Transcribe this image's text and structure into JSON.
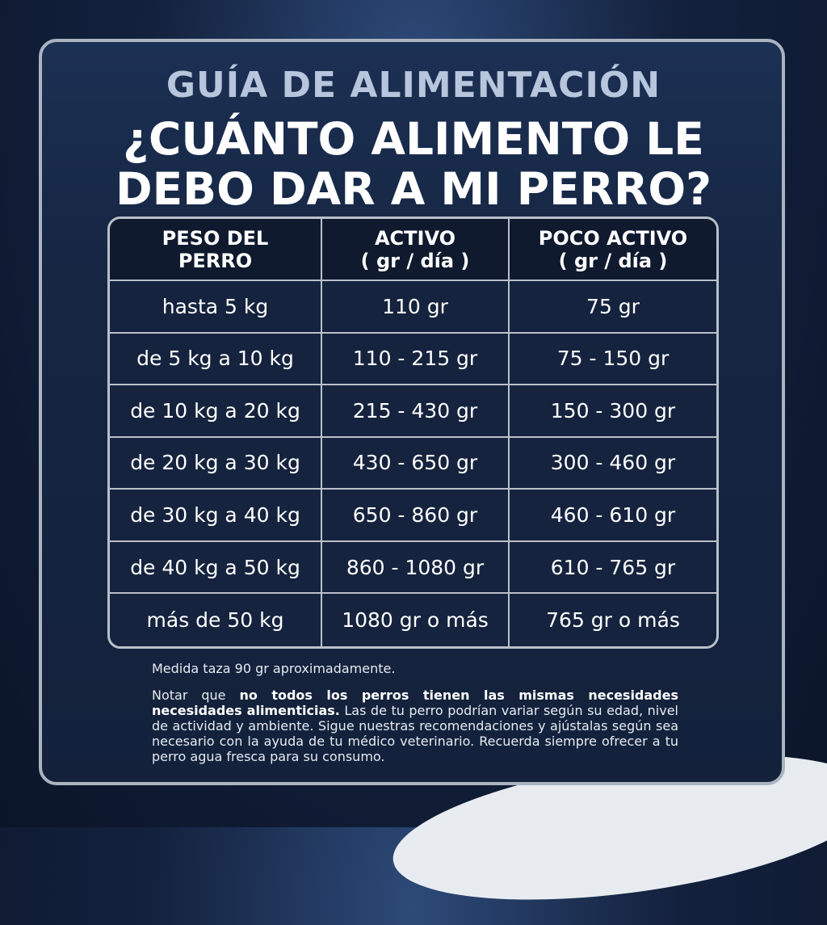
{
  "header": {
    "title": "GUÍA DE ALIMENTACIÓN",
    "subtitle_lines": [
      "¿CUÁNTO ALIMENTO LE",
      "DEBO DAR A MI PERRO?"
    ]
  },
  "table": {
    "headers": [
      [
        "PESO DEL",
        "PERRO"
      ],
      [
        "ACTIVO",
        "( gr / día )"
      ],
      [
        "POCO ACTIVO",
        "( gr / día )"
      ]
    ],
    "rows": [
      [
        "hasta 5 kg",
        "110 gr",
        "75 gr"
      ],
      [
        "de 5 kg a 10 kg",
        "110 - 215 gr",
        "75 - 150 gr"
      ],
      [
        "de 10 kg a 20 kg",
        "215 - 430 gr",
        "150 - 300 gr"
      ],
      [
        "de 20 kg a 30 kg",
        "430 - 650 gr",
        "300 - 460 gr"
      ],
      [
        "de 30 kg a 40 kg",
        "650 - 860 gr",
        "460 - 610 gr"
      ],
      [
        "de 40 kg a 50 kg",
        "860 - 1080 gr",
        "610 - 765 gr"
      ],
      [
        "más de 50 kg",
        "1080 gr o más",
        "765 gr o más"
      ]
    ]
  },
  "notes": {
    "measure": "Medida taza 90 gr aproximadamente.",
    "paragraph": {
      "intro": "Notar que ",
      "bold": "no todos los perros tienen las mismas necesidades necesidades alimenticias.",
      "rest": " Las de tu perro podrían variar según su edad, nivel de actividad y ambiente. Sigue nuestras recomendaciones y ajústalas según sea necesario con la ayuda de tu médico veterinario. Recuerda siempre ofrecer a tu perro agua fresca para su consumo."
    }
  }
}
